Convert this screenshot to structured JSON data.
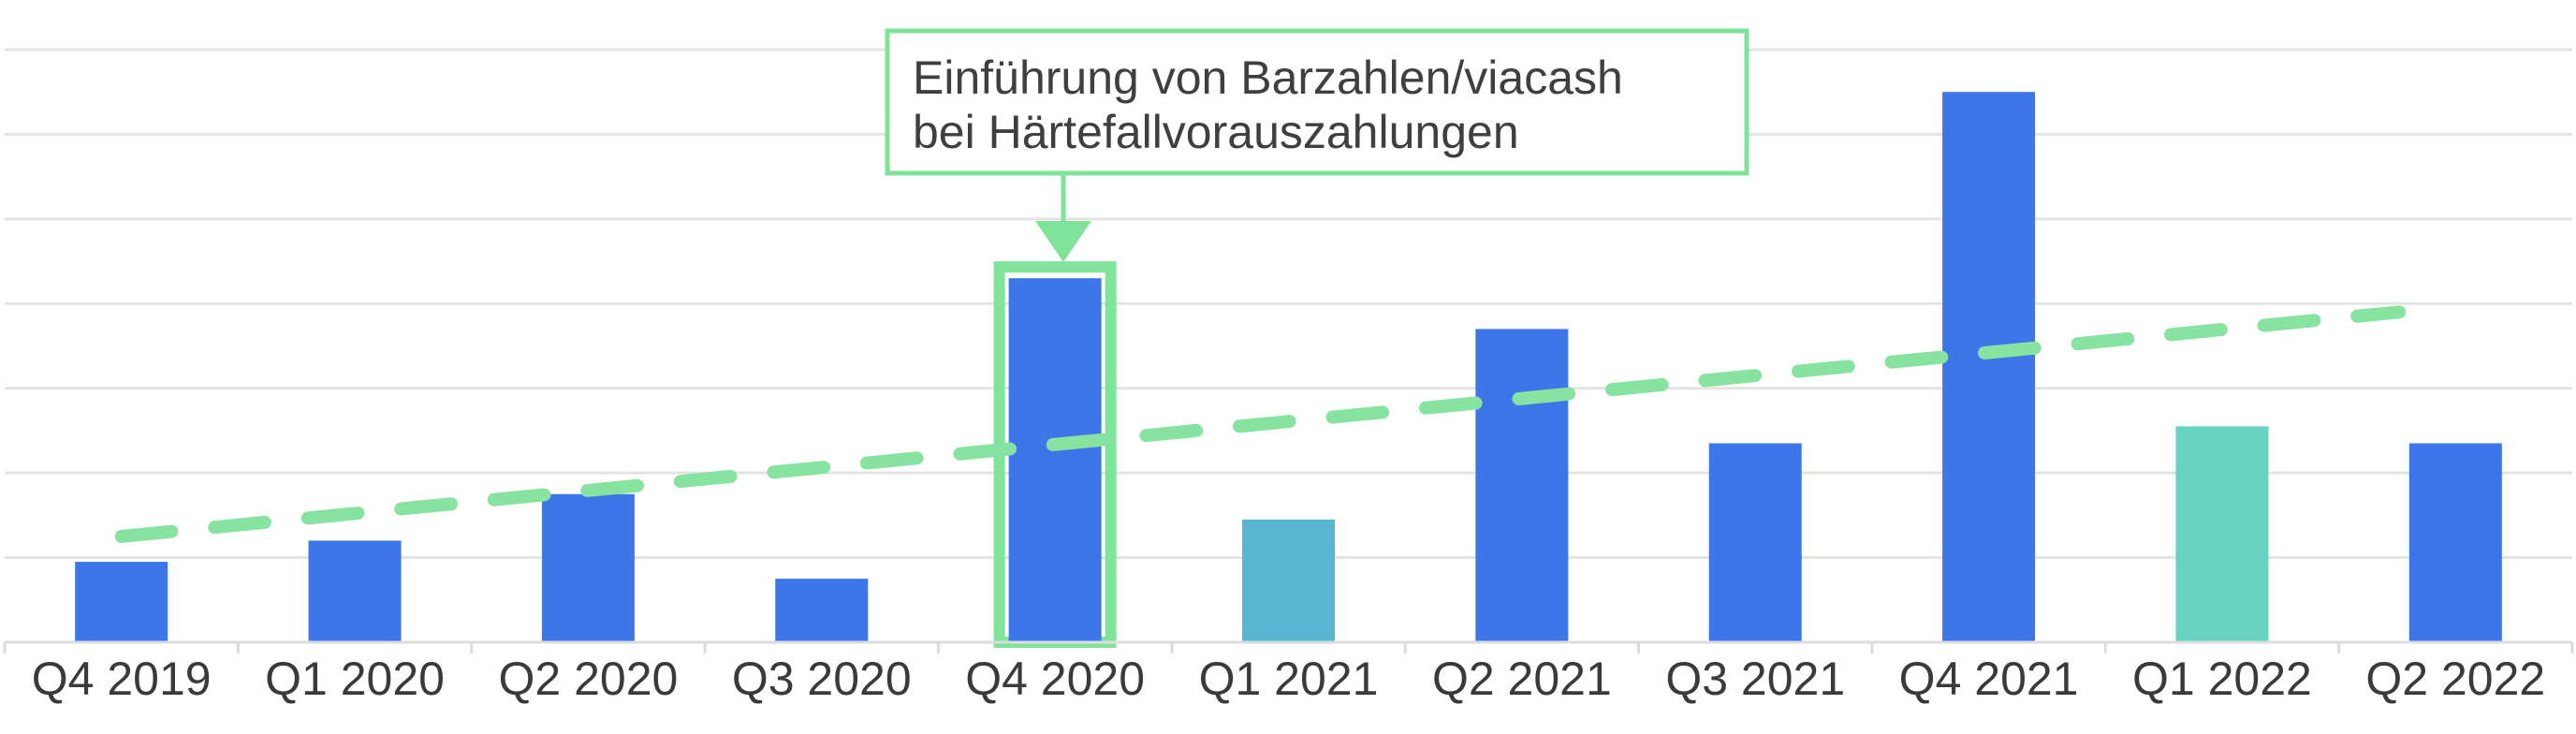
{
  "chart_data": {
    "type": "bar",
    "categories": [
      "Q4 2019",
      "Q1 2020",
      "Q2 2020",
      "Q3 2020",
      "Q4 2020",
      "Q1 2021",
      "Q2 2021",
      "Q3 2021",
      "Q4 2021",
      "Q1 2022",
      "Q2 2022"
    ],
    "values": [
      9.5,
      12,
      17.5,
      7.5,
      43,
      14.5,
      37,
      23.5,
      65,
      25.5,
      23.5
    ],
    "bar_colors": [
      "#3d76e8",
      "#3d76e8",
      "#3d76e8",
      "#3d76e8",
      "#3d76e8",
      "#58b6d0",
      "#3d76e8",
      "#3d76e8",
      "#3d76e8",
      "#65d3c0",
      "#3d76e8"
    ],
    "trend": {
      "style": "dashed",
      "color": "#86e3a0",
      "start_value": 12.5,
      "end_value": 39
    },
    "highlight": {
      "category": "Q4 2020",
      "border_color": "#7fe39a"
    },
    "annotation": {
      "lines": [
        "Einführung von Barzahlen/viacash",
        "bei Härtefallvorauszahlungen"
      ],
      "border_color": "#7fe39a",
      "target": "Q4 2020"
    },
    "ylim": [
      0,
      70
    ],
    "gridlines": [
      0,
      10,
      20,
      30,
      40,
      50,
      60,
      70
    ],
    "y_tick_labels_shown": false,
    "grid": true,
    "title": "",
    "xlabel": "",
    "ylabel": ""
  },
  "colors": {
    "grid": "#e3e3e3",
    "axis": "#dcdcdc",
    "text": "#3a3a3a"
  }
}
